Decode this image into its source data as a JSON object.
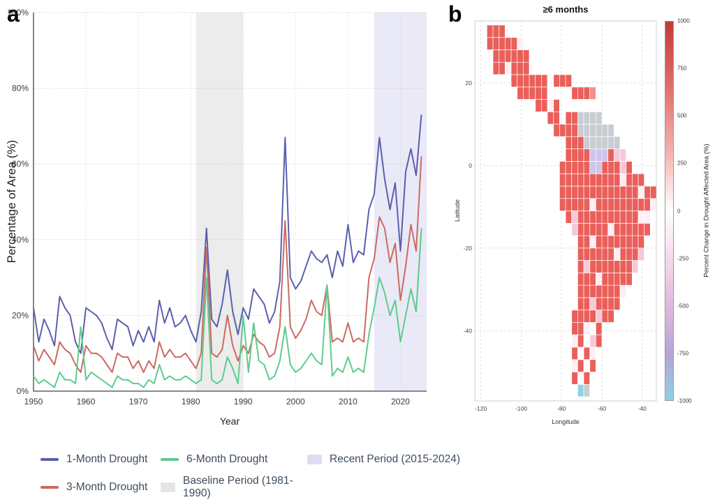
{
  "figure": {
    "panel_a_label": "a",
    "panel_b_label": "b"
  },
  "chart_data": [
    {
      "id": "drought_area_timeseries",
      "type": "line",
      "xlabel": "Year",
      "ylabel": "Percentage of Area (%)",
      "xlim": [
        1950,
        2025
      ],
      "ylim": [
        0,
        100
      ],
      "x_ticks": [
        1950,
        1960,
        1970,
        1980,
        1990,
        2000,
        2010,
        2020
      ],
      "y_ticks": [
        0,
        20,
        40,
        60,
        80,
        100
      ],
      "y_tick_suffix": "%",
      "grid": "dotted",
      "years_start": 1950,
      "years_end": 2024,
      "series": [
        {
          "name": "1-Month Drought",
          "color": "#5b5fae",
          "values": [
            22,
            13,
            19,
            16,
            12,
            25,
            22,
            20,
            13,
            10,
            22,
            21,
            20,
            18,
            14,
            11,
            19,
            18,
            17,
            12,
            16,
            13,
            17,
            13,
            24,
            18,
            22,
            17,
            18,
            20,
            16,
            13,
            21,
            43,
            19,
            17,
            23,
            32,
            21,
            15,
            22,
            19,
            27,
            25,
            23,
            18,
            21,
            29,
            67,
            30,
            27,
            29,
            33,
            37,
            35,
            34,
            36,
            30,
            37,
            33,
            44,
            34,
            37,
            36,
            48,
            52,
            67,
            56,
            48,
            55,
            37,
            58,
            64,
            57,
            73
          ]
        },
        {
          "name": "3-Month Drought",
          "color": "#cb6a5f",
          "values": [
            12,
            8,
            11,
            9,
            7,
            13,
            11,
            10,
            7,
            5,
            12,
            10,
            10,
            9,
            7,
            5,
            10,
            9,
            9,
            6,
            8,
            5,
            8,
            6,
            13,
            9,
            11,
            9,
            9,
            10,
            8,
            6,
            10,
            38,
            10,
            9,
            11,
            20,
            12,
            8,
            12,
            10,
            15,
            13,
            12,
            9,
            10,
            17,
            45,
            17,
            14,
            16,
            19,
            24,
            21,
            20,
            28,
            13,
            14,
            13,
            18,
            13,
            14,
            13,
            30,
            35,
            46,
            43,
            34,
            39,
            24,
            33,
            44,
            37,
            62
          ]
        },
        {
          "name": "6-Month Drought",
          "color": "#5ecb8e",
          "values": [
            4,
            2,
            3,
            2,
            1,
            5,
            3,
            3,
            2,
            17,
            3,
            5,
            4,
            3,
            2,
            1,
            4,
            3,
            3,
            2,
            2,
            1,
            3,
            2,
            7,
            3,
            4,
            3,
            3,
            4,
            3,
            2,
            3,
            30,
            3,
            2,
            3,
            9,
            6,
            2,
            20,
            5,
            18,
            8,
            7,
            3,
            4,
            8,
            17,
            7,
            5,
            6,
            8,
            10,
            8,
            7,
            28,
            4,
            6,
            5,
            9,
            5,
            6,
            5,
            15,
            22,
            30,
            26,
            20,
            24,
            13,
            20,
            27,
            21,
            43
          ]
        }
      ],
      "bands": [
        {
          "name": "Baseline Period (1981-1990)",
          "from": 1981,
          "to": 1990,
          "color": "#e6e6e6",
          "opacity": 0.75
        },
        {
          "name": "Recent Period (2015-2024)",
          "from": 2015,
          "to": 2025,
          "color": "#dcdaf2",
          "opacity": 0.6
        }
      ]
    },
    {
      "id": "drought_change_map",
      "type": "heatmap",
      "title": "≥6 months",
      "xlabel": "Longitude",
      "ylabel": "Latitude",
      "xlim": [
        -123,
        -33
      ],
      "ylim": [
        -57,
        35
      ],
      "x_ticks": [
        -120,
        -100,
        -80,
        -60,
        -40
      ],
      "y_ticks": [
        20,
        0,
        -20,
        -40
      ],
      "colorbar": {
        "label": "Percent Change in Drought Affected Area (%)",
        "ticks": [
          1000,
          750,
          500,
          250,
          0,
          -250,
          -500,
          -750,
          -1000
        ],
        "gradient": [
          "#c23b38 0%",
          "#e1716c 18%",
          "#f5b5b2 35%",
          "#ffffff 50%",
          "#f4d9ea 63%",
          "#ddbade 75%",
          "#b7a4d6 88%",
          "#8ed2e2 100%"
        ]
      },
      "cell_colors": {
        "R": "#ea5f5a",
        "r": "#f0918d",
        "p": "#f6c9da",
        "w": "#fdeff4",
        "g": "#c9cdd2",
        "l": "#cdc6ea",
        "c": "#8fd2e2"
      },
      "grid_origin": {
        "lon": -120,
        "lat": 34,
        "cell_deg": 3
      },
      "grid_rows": [
        ".RRR..........................",
        ".RRRRRw.......................",
        "..RRRRRR......................",
        "..RRwRRR......................",
        ".....RRRRRR.RRR...............",
        "......RRRRR....RRRr...........",
        ".........RRwR.................",
        "...........RR.RRgggg..........",
        "............RRRRgggggg........",
        "..............RRRgggggg.......",
        "..............RRRRlllRpp......",
        ".............RRRRRllRRRpR.....",
        ".............RRRRRRRRRRwRRR...",
        ".............RRRRRRRRRRRRRwRR.",
        ".............RRRRRwRRRRRRRRRw.",
        "..............RpRRRRRRRRRRww..",
        "...............pRRRRRwRRRRRR..",
        "................RRwRRRRRRRR...",
        "................RRRRRRwRRRp...",
        "................RpRRRRRRRp....",
        "................RRRwRRRRR.....",
        "................RRRRRRRw......",
        "................RRpRRRR.......",
        "...............RRRRpRR........",
        "...............RRw.R..........",
        "...............wR.pR..........",
        "...............R.Rw...........",
        "...............wR.R...........",
        "...............R.R............",
        "................cg............"
      ]
    }
  ],
  "legend": {
    "rows": [
      [
        {
          "label": "1-Month Drought",
          "swatch": "line",
          "color": "#5b5fae"
        },
        {
          "label": "6-Month Drought",
          "swatch": "line",
          "color": "#5ecb8e"
        },
        {
          "label": "Recent Period (2015-2024)",
          "swatch": "box",
          "color": "#dedcf3"
        }
      ],
      [
        {
          "label": "3-Month Drought",
          "swatch": "line",
          "color": "#cb6a5f"
        },
        {
          "label": "Baseline Period (1981-1990)",
          "swatch": "box",
          "color": "#e4e4e4"
        }
      ]
    ]
  }
}
